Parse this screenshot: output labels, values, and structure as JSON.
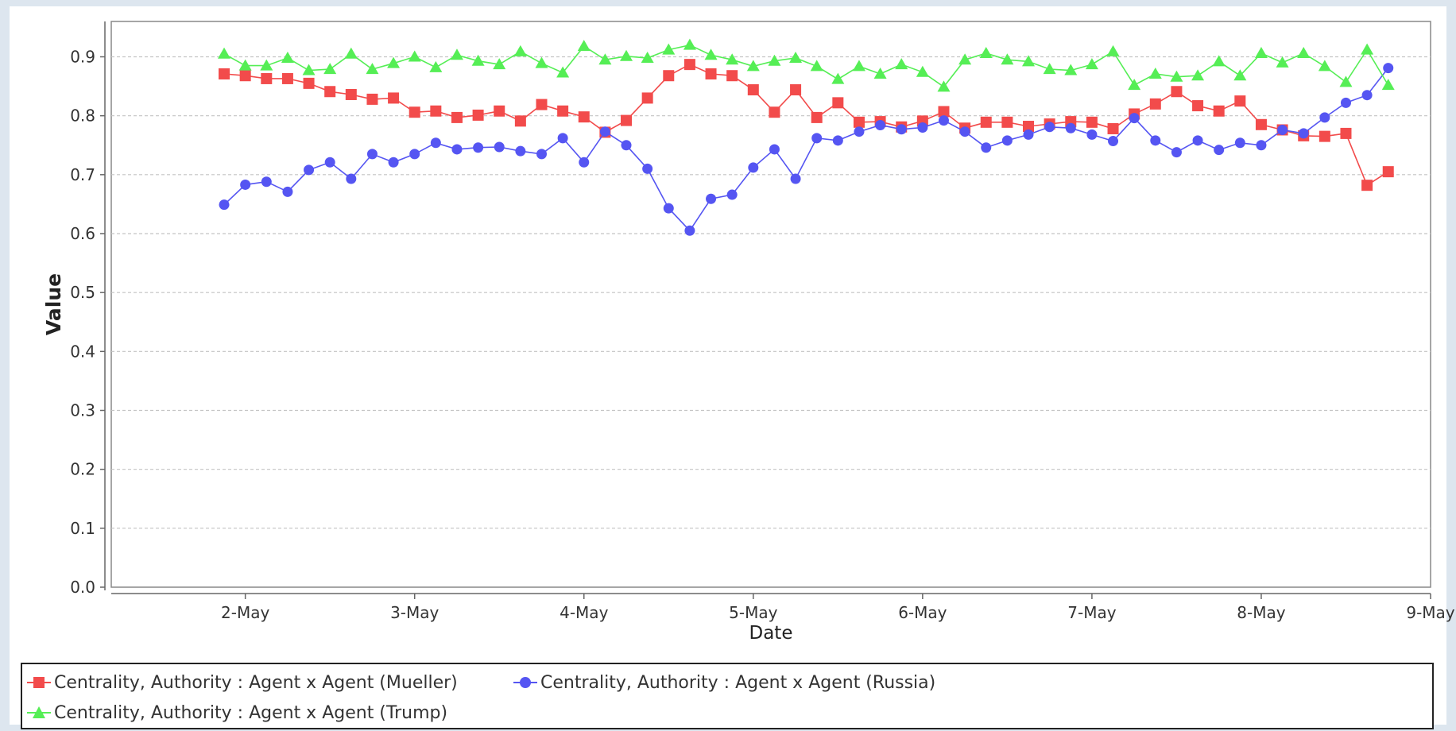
{
  "chart_data": {
    "type": "line",
    "xlabel": "Date",
    "ylabel": "Value",
    "x_tick_labels": [
      "2-May",
      "3-May",
      "4-May",
      "5-May",
      "6-May",
      "7-May",
      "8-May",
      "9-May"
    ],
    "y_ticks": [
      "0.0",
      "0.1",
      "0.2",
      "0.3",
      "0.4",
      "0.5",
      "0.6",
      "0.7",
      "0.8",
      "0.9"
    ],
    "ylim": [
      0,
      0.96
    ],
    "xlim": [
      "2018-05-01 05:00",
      "2018-05-09 00:00"
    ],
    "grid": true,
    "legend_position": "bottom",
    "x": [
      "2018-05-01 21:00",
      "2018-05-02 00:00",
      "2018-05-02 03:00",
      "2018-05-02 06:00",
      "2018-05-02 09:00",
      "2018-05-02 12:00",
      "2018-05-02 15:00",
      "2018-05-02 18:00",
      "2018-05-02 21:00",
      "2018-05-03 00:00",
      "2018-05-03 03:00",
      "2018-05-03 06:00",
      "2018-05-03 09:00",
      "2018-05-03 12:00",
      "2018-05-03 15:00",
      "2018-05-03 18:00",
      "2018-05-03 21:00",
      "2018-05-04 00:00",
      "2018-05-04 03:00",
      "2018-05-04 06:00",
      "2018-05-04 09:00",
      "2018-05-04 12:00",
      "2018-05-04 15:00",
      "2018-05-04 18:00",
      "2018-05-04 21:00",
      "2018-05-05 00:00",
      "2018-05-05 03:00",
      "2018-05-05 06:00",
      "2018-05-05 09:00",
      "2018-05-05 12:00",
      "2018-05-05 15:00",
      "2018-05-05 18:00",
      "2018-05-05 21:00",
      "2018-05-06 00:00",
      "2018-05-06 03:00",
      "2018-05-06 06:00",
      "2018-05-06 09:00",
      "2018-05-06 12:00",
      "2018-05-06 15:00",
      "2018-05-06 18:00",
      "2018-05-06 21:00",
      "2018-05-07 00:00",
      "2018-05-07 03:00",
      "2018-05-07 06:00",
      "2018-05-07 09:00",
      "2018-05-07 12:00",
      "2018-05-07 15:00",
      "2018-05-07 18:00",
      "2018-05-07 21:00",
      "2018-05-08 00:00",
      "2018-05-08 03:00",
      "2018-05-08 06:00",
      "2018-05-08 09:00",
      "2018-05-08 12:00",
      "2018-05-08 15:00",
      "2018-05-08 18:00"
    ],
    "series": [
      {
        "name": "Centrality, Authority : Agent x Agent (Mueller)",
        "color": "#f24b4b",
        "marker": "square",
        "values": [
          0.871,
          0.868,
          0.863,
          0.863,
          0.855,
          0.841,
          0.836,
          0.828,
          0.83,
          0.806,
          0.808,
          0.797,
          0.801,
          0.808,
          0.791,
          0.819,
          0.808,
          0.798,
          0.772,
          0.792,
          0.83,
          0.868,
          0.887,
          0.871,
          0.868,
          0.844,
          0.806,
          0.844,
          0.797,
          0.822,
          0.789,
          0.79,
          0.781,
          0.791,
          0.807,
          0.779,
          0.789,
          0.789,
          0.782,
          0.786,
          0.79,
          0.789,
          0.778,
          0.803,
          0.82,
          0.841,
          0.817,
          0.808,
          0.825,
          0.785,
          0.776,
          0.766,
          0.765,
          0.77,
          0.682,
          0.705
        ]
      },
      {
        "name": "Centrality, Authority : Agent x Agent (Russia)",
        "color": "#5555f2",
        "marker": "circle",
        "values": [
          0.649,
          0.683,
          0.688,
          0.671,
          0.708,
          0.721,
          0.693,
          0.735,
          0.721,
          0.735,
          0.754,
          0.743,
          0.746,
          0.747,
          0.74,
          0.735,
          0.762,
          0.721,
          0.773,
          0.75,
          0.71,
          0.643,
          0.605,
          0.659,
          0.666,
          0.712,
          0.743,
          0.693,
          0.762,
          0.758,
          0.773,
          0.784,
          0.777,
          0.78,
          0.792,
          0.773,
          0.746,
          0.758,
          0.768,
          0.781,
          0.779,
          0.768,
          0.757,
          0.796,
          0.758,
          0.738,
          0.758,
          0.742,
          0.754,
          0.75,
          0.776,
          0.77,
          0.797,
          0.822,
          0.835,
          0.881
        ]
      },
      {
        "name": "Centrality, Authority : Agent x Agent (Trump)",
        "color": "#55ee55",
        "marker": "triangle",
        "values": [
          0.905,
          0.885,
          0.885,
          0.898,
          0.877,
          0.879,
          0.905,
          0.879,
          0.889,
          0.9,
          0.882,
          0.903,
          0.893,
          0.887,
          0.909,
          0.889,
          0.873,
          0.918,
          0.895,
          0.901,
          0.898,
          0.912,
          0.92,
          0.903,
          0.895,
          0.884,
          0.893,
          0.898,
          0.884,
          0.862,
          0.884,
          0.871,
          0.887,
          0.874,
          0.849,
          0.895,
          0.906,
          0.895,
          0.892,
          0.879,
          0.877,
          0.887,
          0.909,
          0.852,
          0.871,
          0.866,
          0.868,
          0.892,
          0.868,
          0.906,
          0.89,
          0.906,
          0.884,
          0.857,
          0.912,
          0.852
        ]
      }
    ]
  }
}
